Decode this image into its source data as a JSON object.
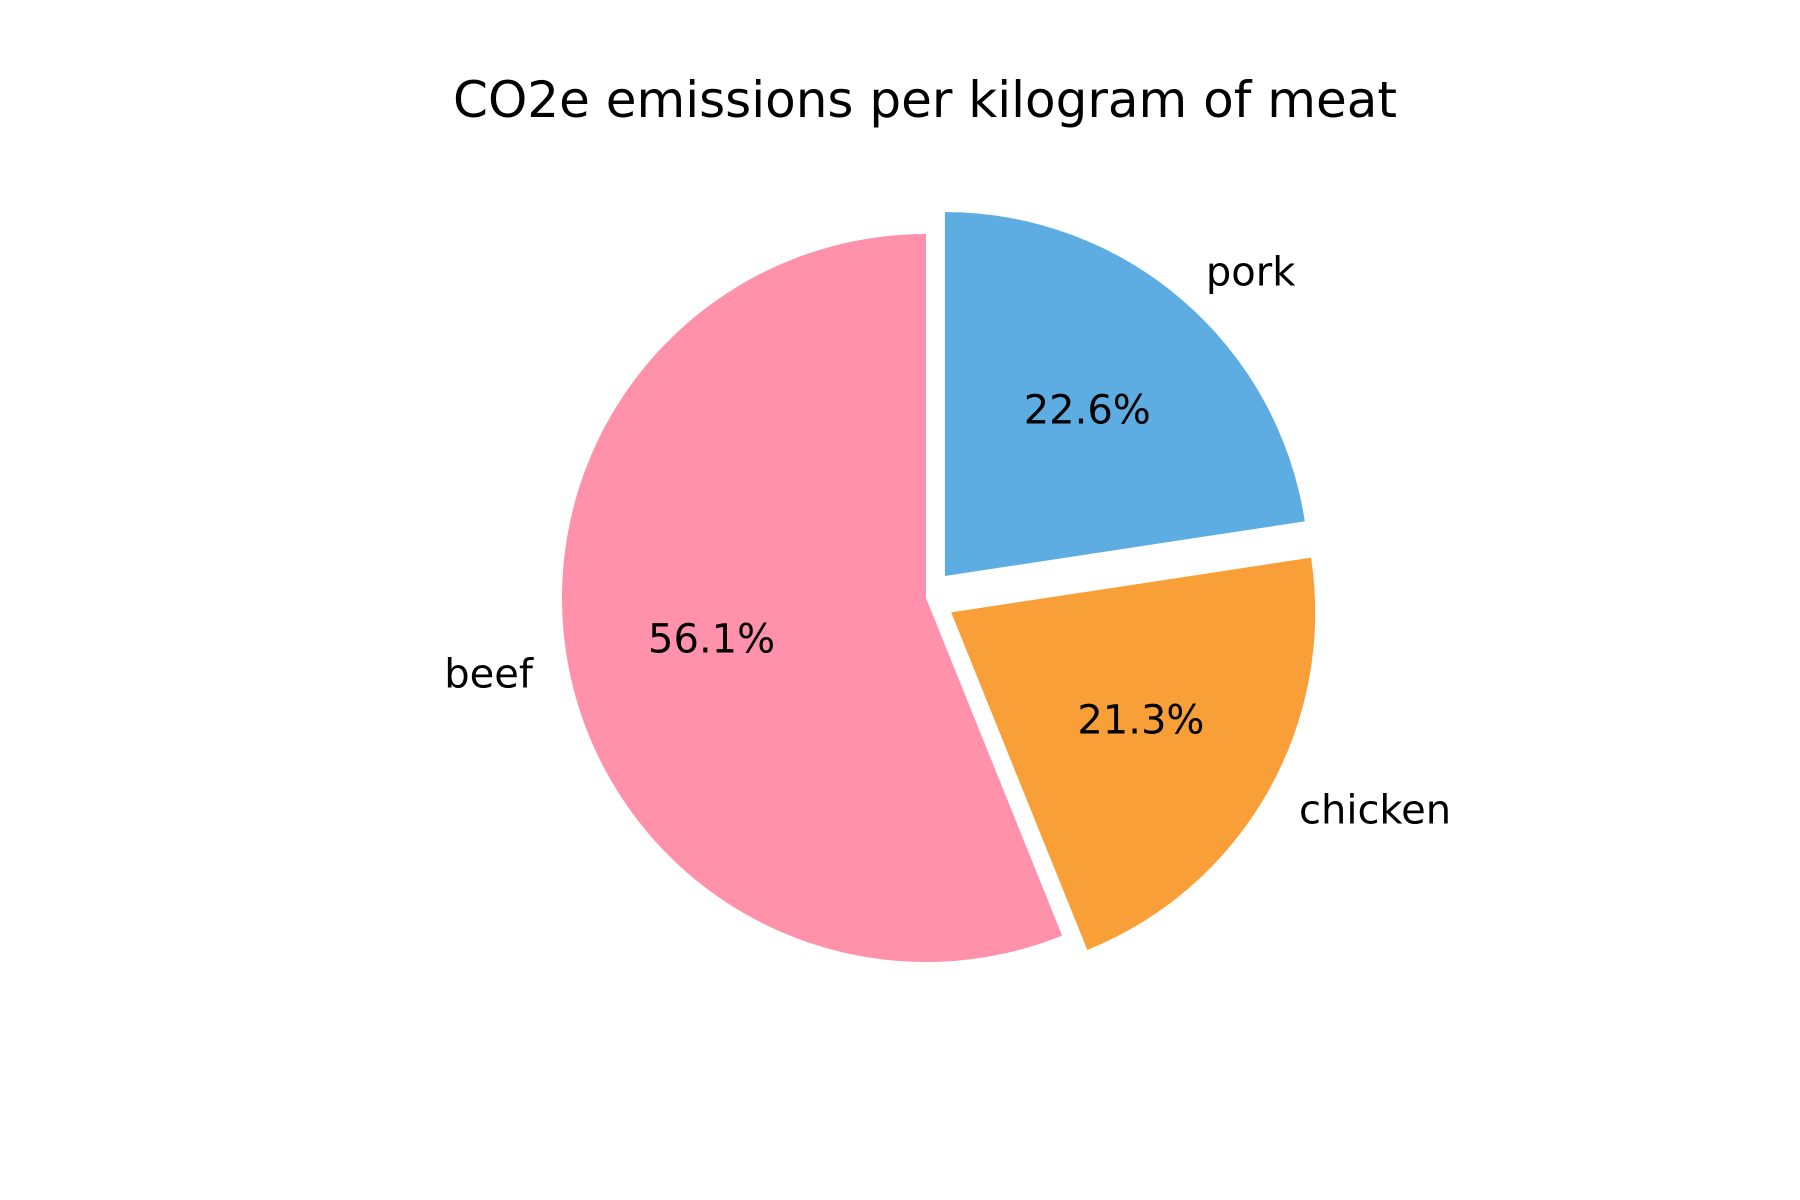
{
  "chart_data": {
    "type": "pie",
    "title": "CO2e emissions per kilogram of meat",
    "slices": [
      {
        "label": "pork",
        "percent": 22.6,
        "percent_label": "22.6%",
        "color": "#5dade2",
        "exploded": true
      },
      {
        "label": "chicken",
        "percent": 21.3,
        "percent_label": "21.3%",
        "color": "#f8a037",
        "exploded": true
      },
      {
        "label": "beef",
        "percent": 56.1,
        "percent_label": "56.1%",
        "color": "#ff91aa",
        "exploded": false
      }
    ],
    "start_angle": "top",
    "direction": "clockwise",
    "legend": "none"
  }
}
